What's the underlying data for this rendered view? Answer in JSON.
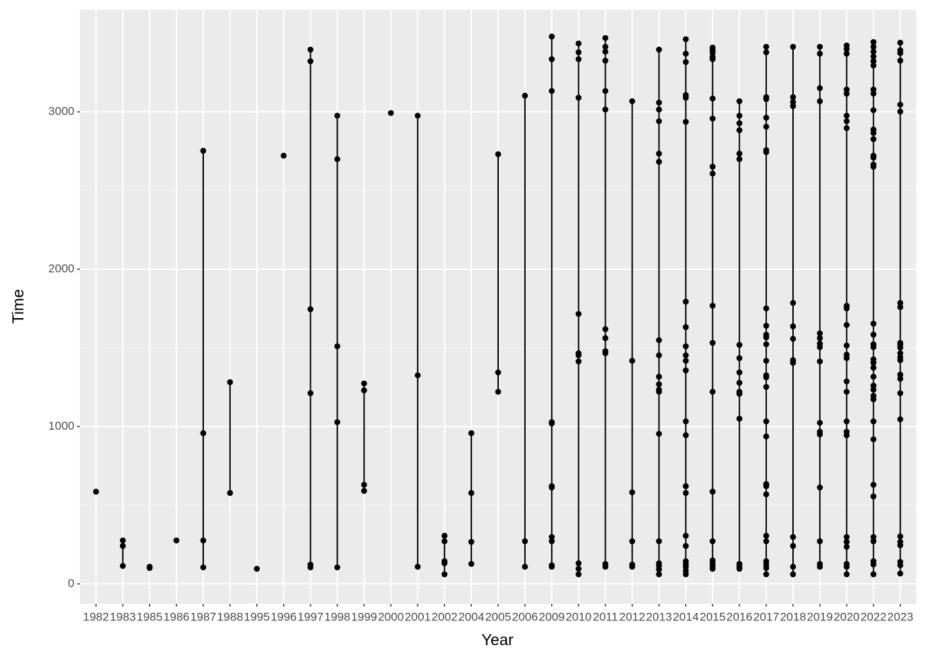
{
  "chart_data": {
    "type": "range-dot",
    "x_label": "Year",
    "y_label": "Time",
    "categories": [
      "1982",
      "1983",
      "1985",
      "1986",
      "1987",
      "1988",
      "1995",
      "1996",
      "1997",
      "1998",
      "1999",
      "2000",
      "2001",
      "2002",
      "2004",
      "2005",
      "2006",
      "2009",
      "2010",
      "2011",
      "2012",
      "2013",
      "2014",
      "2015",
      "2016",
      "2017",
      "2018",
      "2019",
      "2020",
      "2022",
      "2023"
    ],
    "values": [
      [
        586
      ],
      [
        276,
        241,
        114
      ],
      [
        109,
        101
      ],
      [
        276
      ],
      [
        2753,
        958,
        276,
        105
      ],
      [
        1282,
        578
      ],
      [
        96
      ],
      [
        2722
      ],
      [
        3396,
        3322,
        1746,
        1212,
        123,
        105
      ],
      [
        2976,
        2700,
        1510,
        1028,
        105
      ],
      [
        1274,
        1230,
        630,
        591
      ],
      [
        2993
      ],
      [
        2976,
        1326,
        109
      ],
      [
        306,
        271,
        144,
        131,
        61
      ],
      [
        958,
        578,
        267,
        127
      ],
      [
        2731,
        1344,
        1221
      ],
      [
        3103,
        271,
        109
      ],
      [
        3479,
        3335,
        3133,
        1028,
        1020,
        621,
        613,
        298,
        271,
        118,
        109
      ],
      [
        3435,
        3379,
        3335,
        3090,
        1716,
        1466,
        1453,
        1414,
        131,
        96,
        61
      ],
      [
        3470,
        3414,
        3383,
        3326,
        3133,
        3015,
        1619,
        1562,
        1479,
        1466,
        127,
        109
      ],
      [
        3068,
        1418,
        582,
        271,
        123,
        109
      ],
      [
        3396,
        3059,
        3015,
        2941,
        2735,
        2683,
        1549,
        1453,
        1317,
        1269,
        1234,
        1221,
        954,
        271,
        131,
        114,
        92,
        61
      ],
      [
        3462,
        3370,
        3317,
        3107,
        3090,
        2937,
        1794,
        1632,
        1510,
        1453,
        1418,
        1357,
        1033,
        945,
        621,
        578,
        306,
        241,
        144,
        123,
        109,
        83,
        61
      ],
      [
        3409,
        3392,
        3374,
        3348,
        3335,
        3085,
        2958,
        2652,
        2608,
        1768,
        1532,
        1221,
        586,
        271,
        149,
        131,
        114,
        96
      ],
      [
        3068,
        2976,
        2928,
        2884,
        2735,
        2700,
        1519,
        1435,
        1344,
        1278,
        1221,
        1208,
        1050,
        127,
        109,
        96
      ],
      [
        3414,
        3379,
        3094,
        3081,
        2963,
        2906,
        2757,
        2744,
        1751,
        1641,
        1584,
        1567,
        1523,
        1418,
        1326,
        1313,
        1252,
        1033,
        937,
        635,
        621,
        569,
        306,
        271,
        144,
        123,
        101,
        61
      ],
      [
        3414,
        3094,
        3063,
        3037,
        1786,
        1637,
        1558,
        1422,
        1405,
        298,
        241,
        109,
        61
      ],
      [
        3414,
        3370,
        3151,
        3068,
        1593,
        1562,
        1527,
        1505,
        1414,
        1024,
        967,
        950,
        613,
        271,
        127,
        109
      ],
      [
        3422,
        3400,
        3370,
        3142,
        3116,
        2976,
        2941,
        2897,
        1768,
        1751,
        1646,
        1515,
        1457,
        1435,
        1287,
        1221,
        1033,
        967,
        945,
        298,
        267,
        236,
        127,
        109,
        61
      ],
      [
        3444,
        3414,
        3383,
        3352,
        3322,
        3295,
        3142,
        3116,
        3011,
        2888,
        2866,
        2827,
        2722,
        2709,
        2665,
        2652,
        1654,
        1584,
        1523,
        1505,
        1427,
        1405,
        1374,
        1317,
        1260,
        1234,
        1195,
        1173,
        1033,
        919,
        630,
        556,
        298,
        271,
        144,
        123,
        61
      ],
      [
        3440,
        3392,
        3374,
        3326,
        3046,
        3002,
        1786,
        1759,
        1532,
        1519,
        1501,
        1466,
        1440,
        1422,
        1330,
        1304,
        1212,
        1046,
        302,
        267,
        245,
        140,
        118,
        66
      ]
    ],
    "color": "#000000",
    "ylim": [
      -127,
      3650
    ],
    "yticks": [
      0,
      1000,
      2000,
      3000
    ],
    "grid": true
  }
}
